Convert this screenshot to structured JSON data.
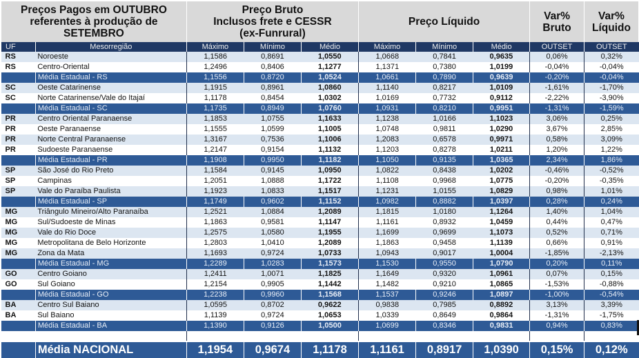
{
  "header": {
    "title": "Preços Pagos em OUTUBRO referentes à produção de SETEMBRO",
    "title_lines": [
      "Preços Pagos em OUTUBRO",
      "referentes à produção de",
      "SETEMBRO"
    ],
    "preco_bruto_lines": [
      "Preço Bruto",
      "Inclusos frete e CESSR",
      "(ex-Funrural)"
    ],
    "preco_liquido": "Preço Líquido",
    "var_bruto_lines": [
      "Var%",
      "Bruto"
    ],
    "var_liquido_lines": [
      "Var%",
      "Líquido"
    ]
  },
  "columns": [
    "UF",
    "Mesorregião",
    "Máximo",
    "Mínimo",
    "Médio",
    "Máximo",
    "Mínimo",
    "Médio",
    "OUTSET",
    "OUTSET"
  ],
  "rows": [
    {
      "type": "data",
      "uf": "RS",
      "meso": "Noroeste",
      "bmax": "1,1586",
      "bmin": "0,8691",
      "bmed": "1,0550",
      "lmax": "1,0668",
      "lmin": "0,7841",
      "lmed": "0,9635",
      "vb": "0,06%",
      "vl": "0,32%"
    },
    {
      "type": "data",
      "uf": "RS",
      "meso": "Centro-Oriental",
      "bmax": "1,2496",
      "bmin": "0,8406",
      "bmed": "1,1277",
      "lmax": "1,1371",
      "lmin": "0,7380",
      "lmed": "1,0199",
      "vb": "-0,04%",
      "vl": "-0,04%"
    },
    {
      "type": "avg",
      "uf": "",
      "meso": "Média Estadual - RS",
      "bmax": "1,1556",
      "bmin": "0,8720",
      "bmed": "1,0524",
      "lmax": "1,0661",
      "lmin": "0,7890",
      "lmed": "0,9639",
      "vb": "-0,20%",
      "vl": "-0,04%"
    },
    {
      "type": "data",
      "uf": "SC",
      "meso": "Oeste Catarinense",
      "bmax": "1,1915",
      "bmin": "0,8961",
      "bmed": "1,0860",
      "lmax": "1,1140",
      "lmin": "0,8217",
      "lmed": "1,0109",
      "vb": "-1,61%",
      "vl": "-1,70%"
    },
    {
      "type": "data",
      "uf": "SC",
      "meso": "Norte Catarinense/Vale do Itajaí",
      "bmax": "1,1178",
      "bmin": "0,8454",
      "bmed": "1,0302",
      "lmax": "1,0169",
      "lmin": "0,7732",
      "lmed": "0,9112",
      "vb": "-2,22%",
      "vl": "-3,90%"
    },
    {
      "type": "avg",
      "uf": "",
      "meso": "Média Estadual - SC",
      "bmax": "1,1735",
      "bmin": "0,8949",
      "bmed": "1,0760",
      "lmax": "1,0931",
      "lmin": "0,8210",
      "lmed": "0,9951",
      "vb": "-1,31%",
      "vl": "-1,59%"
    },
    {
      "type": "data",
      "uf": "PR",
      "meso": "Centro Oriental Paranaense",
      "bmax": "1,1853",
      "bmin": "1,0755",
      "bmed": "1,1633",
      "lmax": "1,1238",
      "lmin": "1,0166",
      "lmed": "1,1023",
      "vb": "3,06%",
      "vl": "0,25%"
    },
    {
      "type": "data",
      "uf": "PR",
      "meso": "Oeste Paranaense",
      "bmax": "1,1555",
      "bmin": "1,0599",
      "bmed": "1,1005",
      "lmax": "1,0748",
      "lmin": "0,9811",
      "lmed": "1,0290",
      "vb": "3,67%",
      "vl": "2,85%"
    },
    {
      "type": "data",
      "uf": "PR",
      "meso": "Norte Central Paranaense",
      "bmax": "1,3167",
      "bmin": "0,7536",
      "bmed": "1,1006",
      "lmax": "1,2083",
      "lmin": "0,6578",
      "lmed": "0,9971",
      "vb": "0,58%",
      "vl": "3,09%"
    },
    {
      "type": "data",
      "uf": "PR",
      "meso": "Sudoeste Paranaense",
      "bmax": "1,2147",
      "bmin": "0,9154",
      "bmed": "1,1132",
      "lmax": "1,1203",
      "lmin": "0,8278",
      "lmed": "1,0211",
      "vb": "1,20%",
      "vl": "1,22%"
    },
    {
      "type": "avg",
      "uf": "",
      "meso": "Média Estadual - PR",
      "bmax": "1,1908",
      "bmin": "0,9950",
      "bmed": "1,1182",
      "lmax": "1,1050",
      "lmin": "0,9135",
      "lmed": "1,0365",
      "vb": "2,34%",
      "vl": "1,86%"
    },
    {
      "type": "data",
      "uf": "SP",
      "meso": "São José do Rio Preto",
      "bmax": "1,1584",
      "bmin": "0,9145",
      "bmed": "1,0950",
      "lmax": "1,0822",
      "lmin": "0,8438",
      "lmed": "1,0202",
      "vb": "-0,46%",
      "vl": "-0,52%"
    },
    {
      "type": "data",
      "uf": "SP",
      "meso": "Campinas",
      "bmax": "1,2051",
      "bmin": "1,0888",
      "bmed": "1,1722",
      "lmax": "1,1108",
      "lmin": "0,9968",
      "lmed": "1,0775",
      "vb": "-0,20%",
      "vl": "-0,35%"
    },
    {
      "type": "data",
      "uf": "SP",
      "meso": "Vale do Paraíba Paulista",
      "bmax": "1,1923",
      "bmin": "1,0833",
      "bmed": "1,1517",
      "lmax": "1,1231",
      "lmin": "1,0155",
      "lmed": "1,0829",
      "vb": "0,98%",
      "vl": "1,01%"
    },
    {
      "type": "avg",
      "uf": "",
      "meso": "Média Estadual - SP",
      "bmax": "1,1749",
      "bmin": "0,9602",
      "bmed": "1,1152",
      "lmax": "1,0982",
      "lmin": "0,8882",
      "lmed": "1,0397",
      "vb": "0,28%",
      "vl": "0,24%"
    },
    {
      "type": "data",
      "uf": "MG",
      "meso": "Triângulo Mineiro/Alto Paranaíba",
      "bmax": "1,2521",
      "bmin": "1,0884",
      "bmed": "1,2089",
      "lmax": "1,1815",
      "lmin": "1,0180",
      "lmed": "1,1264",
      "vb": "1,40%",
      "vl": "1,04%"
    },
    {
      "type": "data",
      "uf": "MG",
      "meso": "Sul/Sudoeste de Minas",
      "bmax": "1,1863",
      "bmin": "0,9581",
      "bmed": "1,1147",
      "lmax": "1,1161",
      "lmin": "0,8932",
      "lmed": "1,0459",
      "vb": "0,44%",
      "vl": "0,47%"
    },
    {
      "type": "data",
      "uf": "MG",
      "meso": "Vale do Rio Doce",
      "bmax": "1,2575",
      "bmin": "1,0580",
      "bmed": "1,1955",
      "lmax": "1,1699",
      "lmin": "0,9699",
      "lmed": "1,1073",
      "vb": "0,52%",
      "vl": "0,71%"
    },
    {
      "type": "data",
      "uf": "MG",
      "meso": "Metropolitana de Belo Horizonte",
      "bmax": "1,2803",
      "bmin": "1,0410",
      "bmed": "1,2089",
      "lmax": "1,1863",
      "lmin": "0,9458",
      "lmed": "1,1139",
      "vb": "0,66%",
      "vl": "0,91%"
    },
    {
      "type": "data",
      "uf": "MG",
      "meso": "Zona da Mata",
      "bmax": "1,1693",
      "bmin": "0,9724",
      "bmed": "1,0733",
      "lmax": "1,0943",
      "lmin": "0,9017",
      "lmed": "1,0004",
      "vb": "-1,85%",
      "vl": "-2,13%"
    },
    {
      "type": "avg",
      "uf": "",
      "meso": "Média Estadual - MG",
      "bmax": "1,2289",
      "bmin": "1,0283",
      "bmed": "1,1573",
      "lmax": "1,1530",
      "lmin": "0,9550",
      "lmed": "1,0790",
      "vb": "0,20%",
      "vl": "0,11%"
    },
    {
      "type": "data",
      "uf": "GO",
      "meso": "Centro Goiano",
      "bmax": "1,2411",
      "bmin": "1,0071",
      "bmed": "1,1825",
      "lmax": "1,1649",
      "lmin": "0,9320",
      "lmed": "1,0961",
      "vb": "0,07%",
      "vl": "0,15%"
    },
    {
      "type": "data",
      "uf": "GO",
      "meso": "Sul Goiano",
      "bmax": "1,2154",
      "bmin": "0,9905",
      "bmed": "1,1442",
      "lmax": "1,1482",
      "lmin": "0,9210",
      "lmed": "1,0865",
      "vb": "-1,53%",
      "vl": "-0,88%"
    },
    {
      "type": "avg",
      "uf": "",
      "meso": "Média Estadual - GO",
      "bmax": "1,2238",
      "bmin": "0,9960",
      "bmed": "1,1568",
      "lmax": "1,1537",
      "lmin": "0,9246",
      "lmed": "1,0897",
      "vb": "-1,00%",
      "vl": "-0,54%"
    },
    {
      "type": "data",
      "uf": "BA",
      "meso": "Centro Sul Baiano",
      "bmax": "1,0595",
      "bmin": "0,8702",
      "bmed": "0,9622",
      "lmax": "0,9838",
      "lmin": "0,7985",
      "lmed": "0,8892",
      "vb": "3,13%",
      "vl": "3,39%"
    },
    {
      "type": "data",
      "uf": "BA",
      "meso": "Sul Baiano",
      "bmax": "1,1139",
      "bmin": "0,9724",
      "bmed": "1,0653",
      "lmax": "1,0339",
      "lmin": "0,8649",
      "lmed": "0,9864",
      "vb": "-1,31%",
      "vl": "-1,75%"
    },
    {
      "type": "avg",
      "uf": "",
      "meso": "Média Estadual - BA",
      "bmax": "1,1390",
      "bmin": "0,9126",
      "bmed": "1,0500",
      "lmax": "1,0699",
      "lmin": "0,8346",
      "lmed": "0,9831",
      "vb": "0,94%",
      "vl": "0,83%"
    }
  ],
  "national": {
    "label": "Média NACIONAL",
    "bmax": "1,1954",
    "bmin": "0,9674",
    "bmed": "1,1178",
    "lmax": "1,1161",
    "lmin": "0,8917",
    "lmed": "1,0390",
    "vb": "0,15%",
    "vl": "0,12%"
  }
}
